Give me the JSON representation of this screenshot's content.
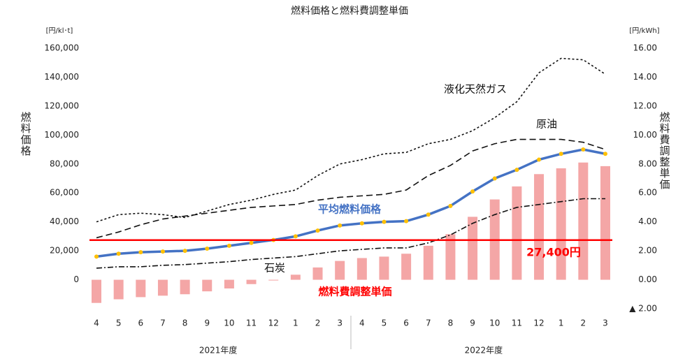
{
  "chart_data": {
    "type": "line-bar",
    "title": "燃料価格と燃料費調整単価",
    "y_unit": "[円/kl･t]",
    "y2_unit": "[円/kWh]",
    "ylabel": "燃料価格",
    "y2label": "燃料費調整単価",
    "categories": [
      "4",
      "5",
      "6",
      "7",
      "8",
      "9",
      "10",
      "11",
      "12",
      "1",
      "2",
      "3",
      "4",
      "5",
      "6",
      "7",
      "8",
      "9",
      "10",
      "11",
      "12",
      "1",
      "2",
      "3"
    ],
    "groups": [
      "2021年度",
      "2022年度"
    ],
    "ylim": [
      -20000,
      160000
    ],
    "yticks": [
      0,
      {
        "value": 20000,
        "label": "20,000"
      },
      {
        "value": 40000,
        "label": "40,000"
      },
      {
        "value": 60000,
        "label": "60,000"
      },
      {
        "value": 80000,
        "label": "80,000"
      },
      {
        "value": 100000,
        "label": "100,000"
      },
      {
        "value": 120000,
        "label": "120,000"
      },
      {
        "value": 140000,
        "label": "140,000"
      },
      {
        "value": 160000,
        "label": "160,000"
      }
    ],
    "y2lim": [
      -2,
      16
    ],
    "y2ticks": [
      {
        "value": -2,
        "label": "▲ 2.00"
      },
      {
        "value": 0,
        "label": "0.00"
      },
      {
        "value": 2,
        "label": "2.00"
      },
      {
        "value": 4,
        "label": "4.00"
      },
      {
        "value": 6,
        "label": "6.00"
      },
      {
        "value": 8,
        "label": "8.00"
      },
      {
        "value": 10,
        "label": "10.00"
      },
      {
        "value": 12,
        "label": "12.00"
      },
      {
        "value": 14,
        "label": "14.00"
      },
      {
        "value": 16,
        "label": "16.00"
      }
    ],
    "series": [
      {
        "name": "燃料費調整単価",
        "kind": "bar",
        "axis": "y2",
        "color": "#f4a6a6",
        "values": [
          -1.6,
          -1.35,
          -1.2,
          -1.1,
          -1.0,
          -0.8,
          -0.6,
          -0.3,
          -0.05,
          0.35,
          0.85,
          1.3,
          1.5,
          1.6,
          1.8,
          2.35,
          3.15,
          4.35,
          5.55,
          6.45,
          7.3,
          7.7,
          8.1,
          7.85
        ]
      },
      {
        "name": "液化天然ガス",
        "kind": "line",
        "dash": "3,3",
        "color": "#111111",
        "values": [
          40000,
          45000,
          46000,
          45000,
          43000,
          47500,
          52000,
          55000,
          59000,
          62000,
          72000,
          80000,
          83000,
          87000,
          88000,
          94000,
          97000,
          103000,
          112000,
          123000,
          143000,
          153000,
          152000,
          142000
        ]
      },
      {
        "name": "原油",
        "kind": "line",
        "dash": "9,5",
        "color": "#111111",
        "values": [
          29000,
          33000,
          38000,
          42000,
          44000,
          46000,
          48000,
          50000,
          51000,
          52000,
          55000,
          57000,
          58000,
          59000,
          62000,
          72000,
          79000,
          89000,
          94000,
          97000,
          97000,
          97000,
          95000,
          90000
        ]
      },
      {
        "name": "石炭",
        "kind": "line",
        "dash": "8,3,2,3",
        "color": "#111111",
        "values": [
          8000,
          9000,
          9000,
          10000,
          10500,
          11500,
          12500,
          14000,
          15000,
          16000,
          18000,
          20000,
          21000,
          22000,
          22000,
          25500,
          31000,
          39000,
          45000,
          50000,
          52000,
          54000,
          56000,
          56000
        ]
      },
      {
        "name": "平均燃料価格",
        "kind": "line",
        "color": "#4472c4",
        "marker_color": "#ffc000",
        "values": [
          16000,
          18000,
          19000,
          19500,
          20000,
          21500,
          23500,
          25500,
          27500,
          30000,
          34000,
          37500,
          39000,
          40000,
          40500,
          45000,
          51000,
          61000,
          70000,
          76000,
          83000,
          87000,
          90000,
          87000
        ]
      }
    ],
    "reference": {
      "value": 27400,
      "label": "27,400円",
      "color": "#ff0000"
    }
  }
}
